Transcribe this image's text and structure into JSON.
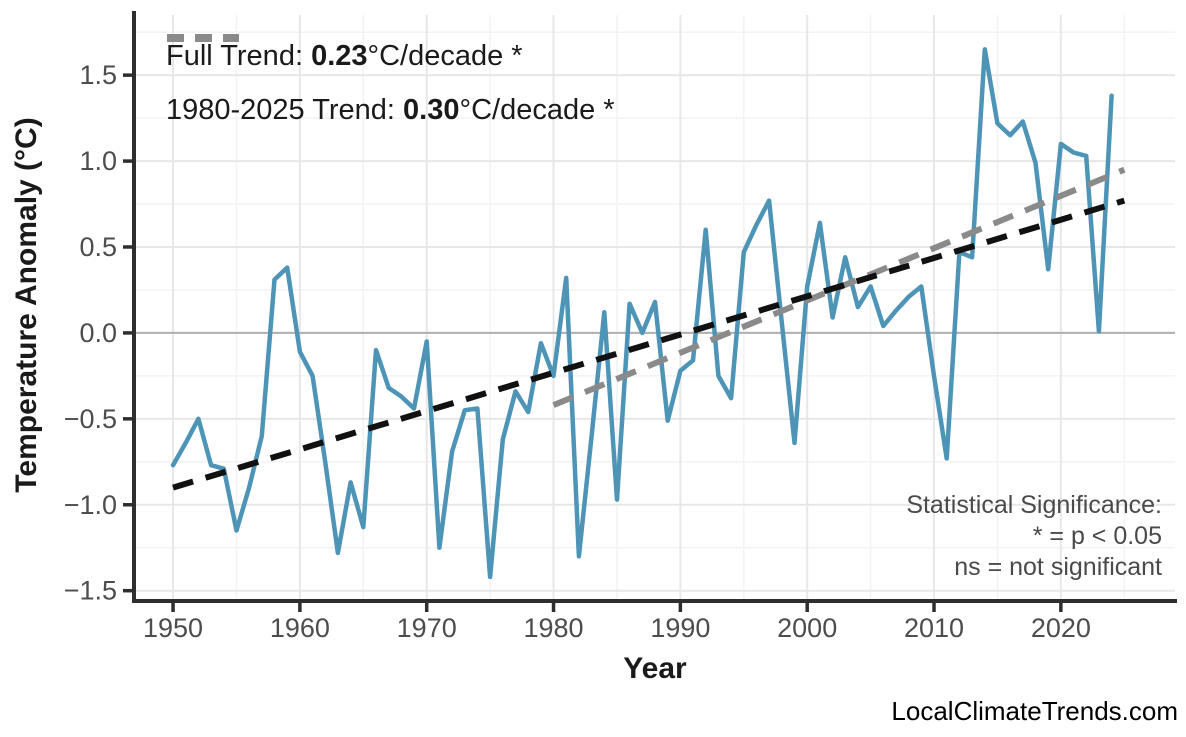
{
  "legend": {
    "full_trend": {
      "label": "Full Trend: ",
      "value": "0.23",
      "suffix": "°C/decade *",
      "color": "#111111"
    },
    "recent_trend": {
      "label": "1980-2025 Trend: ",
      "value": "0.30",
      "suffix": "°C/decade *",
      "color": "#8a8a8a"
    }
  },
  "annotation": {
    "line1": "Statistical Significance:",
    "line2": "* = p < 0.05",
    "line3": "ns = not significant"
  },
  "axes": {
    "x_label": "Year",
    "y_label": "Temperature Anomaly (°C)"
  },
  "watermark": "LocalClimateTrends.com",
  "chart_data": {
    "type": "line",
    "title": "",
    "xlabel": "Year",
    "ylabel": "Temperature Anomaly (°C)",
    "xlim": [
      1947,
      2029
    ],
    "ylim": [
      -1.56,
      1.85
    ],
    "grid": true,
    "legend_position": "top-left",
    "x_ticks": [
      1950,
      1960,
      1970,
      1980,
      1990,
      2000,
      2010,
      2020
    ],
    "x_tick_labels": [
      "1950",
      "1960",
      "1970",
      "1980",
      "1990",
      "2000",
      "2010",
      "2020"
    ],
    "x_minor_ticks": [
      1955,
      1965,
      1975,
      1985,
      1995,
      2005,
      2015,
      2025
    ],
    "y_ticks": [
      -1.5,
      -1.0,
      -0.5,
      0.0,
      0.5,
      1.0,
      1.5
    ],
    "y_tick_labels": [
      "−1.5",
      "−1.0",
      "−0.5",
      "0.0",
      "0.5",
      "1.0",
      "1.5"
    ],
    "y_minor_ticks": [
      -1.25,
      -0.75,
      -0.25,
      0.25,
      0.75,
      1.25,
      1.75
    ],
    "zero_line": 0.0,
    "series": [
      {
        "name": "temperature-anomaly",
        "style": "solid",
        "color": "#4D94B7",
        "width": 4.5,
        "x": [
          1950,
          1951,
          1952,
          1953,
          1954,
          1955,
          1956,
          1957,
          1958,
          1959,
          1960,
          1961,
          1962,
          1963,
          1964,
          1965,
          1966,
          1967,
          1968,
          1969,
          1970,
          1971,
          1972,
          1973,
          1974,
          1975,
          1976,
          1977,
          1978,
          1979,
          1980,
          1981,
          1982,
          1983,
          1984,
          1985,
          1986,
          1987,
          1988,
          1989,
          1990,
          1991,
          1992,
          1993,
          1994,
          1995,
          1996,
          1997,
          1998,
          1999,
          2000,
          2001,
          2002,
          2003,
          2004,
          2005,
          2006,
          2007,
          2008,
          2009,
          2010,
          2011,
          2012,
          2013,
          2014,
          2015,
          2016,
          2017,
          2018,
          2019,
          2020,
          2021,
          2022,
          2023,
          2024
        ],
        "y": [
          -0.77,
          -0.64,
          -0.5,
          -0.77,
          -0.79,
          -1.15,
          -0.9,
          -0.6,
          0.31,
          0.38,
          -0.11,
          -0.25,
          -0.75,
          -1.28,
          -0.87,
          -1.13,
          -0.1,
          -0.32,
          -0.37,
          -0.44,
          -0.05,
          -1.25,
          -0.69,
          -0.45,
          -0.44,
          -1.42,
          -0.62,
          -0.34,
          -0.46,
          -0.06,
          -0.25,
          0.32,
          -1.3,
          -0.6,
          0.12,
          -0.97,
          0.17,
          0.0,
          0.18,
          -0.51,
          -0.22,
          -0.16,
          0.6,
          -0.25,
          -0.38,
          0.47,
          0.63,
          0.77,
          0.06,
          -0.64,
          0.27,
          0.64,
          0.09,
          0.44,
          0.15,
          0.27,
          0.04,
          0.13,
          0.21,
          0.27,
          -0.25,
          -0.73,
          0.47,
          0.44,
          1.65,
          1.22,
          1.15,
          1.23,
          0.99,
          0.37,
          1.1,
          1.05,
          1.03,
          0.01,
          1.38
        ]
      },
      {
        "name": "trend-1980-2025",
        "style": "dashed",
        "color": "#8a8a8a",
        "width": 6,
        "x": [
          1980,
          2025
        ],
        "y": [
          -0.42,
          0.95
        ]
      },
      {
        "name": "full-trend",
        "style": "dashed",
        "color": "#111111",
        "width": 6,
        "x": [
          1950,
          2025
        ],
        "y": [
          -0.9,
          0.77
        ]
      }
    ]
  }
}
